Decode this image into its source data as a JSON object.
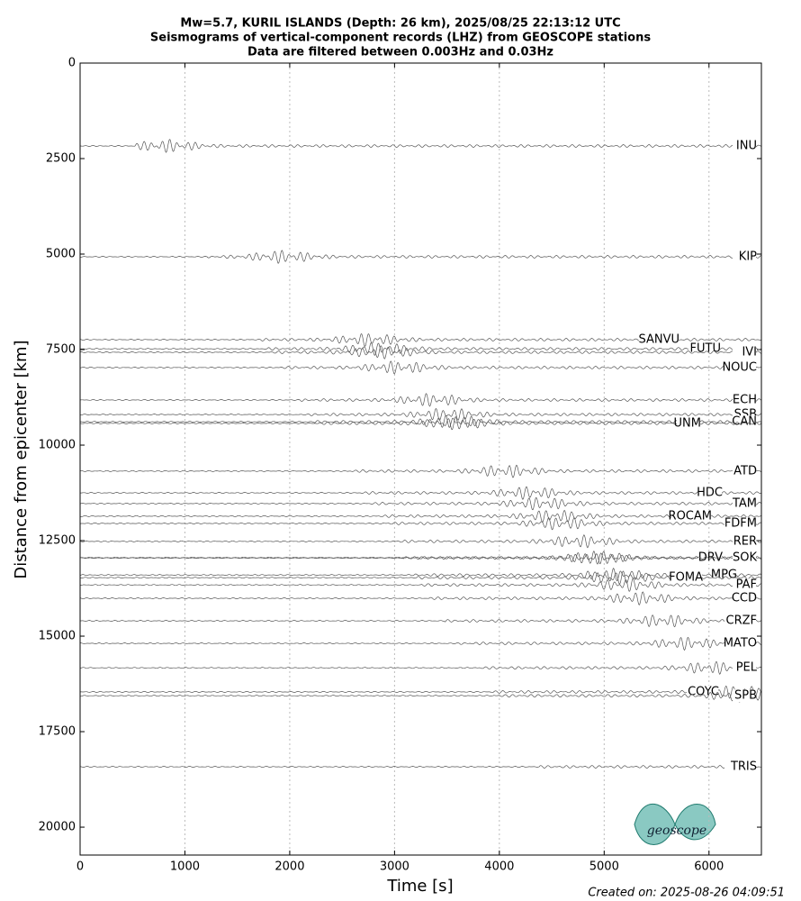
{
  "chart_data": {
    "type": "seismogram",
    "title": [
      "Mw=5.7, KURIL ISLANDS (Depth: 26 km), 2025/08/25 22:13:12 UTC",
      "Seismograms of vertical-component records (LHZ) from GEOSCOPE stations",
      "Data are filtered between 0.003Hz and 0.03Hz"
    ],
    "x_label": "Time [s]",
    "y_label": "Distance from epicenter [km]",
    "xlim": [
      0,
      6500
    ],
    "ylim": [
      0,
      20730
    ],
    "y_inverted": true,
    "xticks": [
      0,
      1000,
      2000,
      3000,
      4000,
      5000,
      6000
    ],
    "yticks": [
      0,
      2500,
      5000,
      7500,
      10000,
      12500,
      15000,
      17500,
      20000
    ],
    "grid": "x",
    "color": "#555555",
    "series": [
      {
        "name": "INU",
        "values": [
          2170
        ]
      },
      {
        "name": "KIP",
        "values": [
          5070
        ]
      },
      {
        "name": "SANVU",
        "values": [
          7240
        ]
      },
      {
        "name": "FUTU",
        "values": [
          7480
        ]
      },
      {
        "name": "IVI",
        "values": [
          7570
        ]
      },
      {
        "name": "NOUC",
        "values": [
          7970
        ]
      },
      {
        "name": "ECH",
        "values": [
          8820
        ]
      },
      {
        "name": "SSB",
        "values": [
          9200
        ]
      },
      {
        "name": "CAN",
        "values": [
          9390
        ]
      },
      {
        "name": "UNM",
        "values": [
          9430
        ]
      },
      {
        "name": "ATD",
        "values": [
          10680
        ]
      },
      {
        "name": "HDC",
        "values": [
          11250
        ]
      },
      {
        "name": "TAM",
        "values": [
          11530
        ]
      },
      {
        "name": "ROCAM",
        "values": [
          11860
        ]
      },
      {
        "name": "FDFM",
        "values": [
          12050
        ]
      },
      {
        "name": "RER",
        "values": [
          12520
        ]
      },
      {
        "name": "DRV",
        "values": [
          12950
        ]
      },
      {
        "name": "SOK",
        "values": [
          12950
        ]
      },
      {
        "name": "MPG",
        "values": [
          13400
        ]
      },
      {
        "name": "FOMA",
        "values": [
          13470
        ]
      },
      {
        "name": "PAF",
        "values": [
          13660
        ]
      },
      {
        "name": "CCD",
        "values": [
          14010
        ]
      },
      {
        "name": "CRZF",
        "values": [
          14600
        ]
      },
      {
        "name": "MATO",
        "values": [
          15190
        ]
      },
      {
        "name": "PEL",
        "values": [
          15830
        ]
      },
      {
        "name": "COYC",
        "values": [
          16460
        ]
      },
      {
        "name": "SPB",
        "values": [
          16560
        ]
      },
      {
        "name": "TRIS",
        "values": [
          18420
        ]
      }
    ],
    "footer": "Created on: 2025-08-26 04:09:51",
    "logo": "geoscope"
  }
}
